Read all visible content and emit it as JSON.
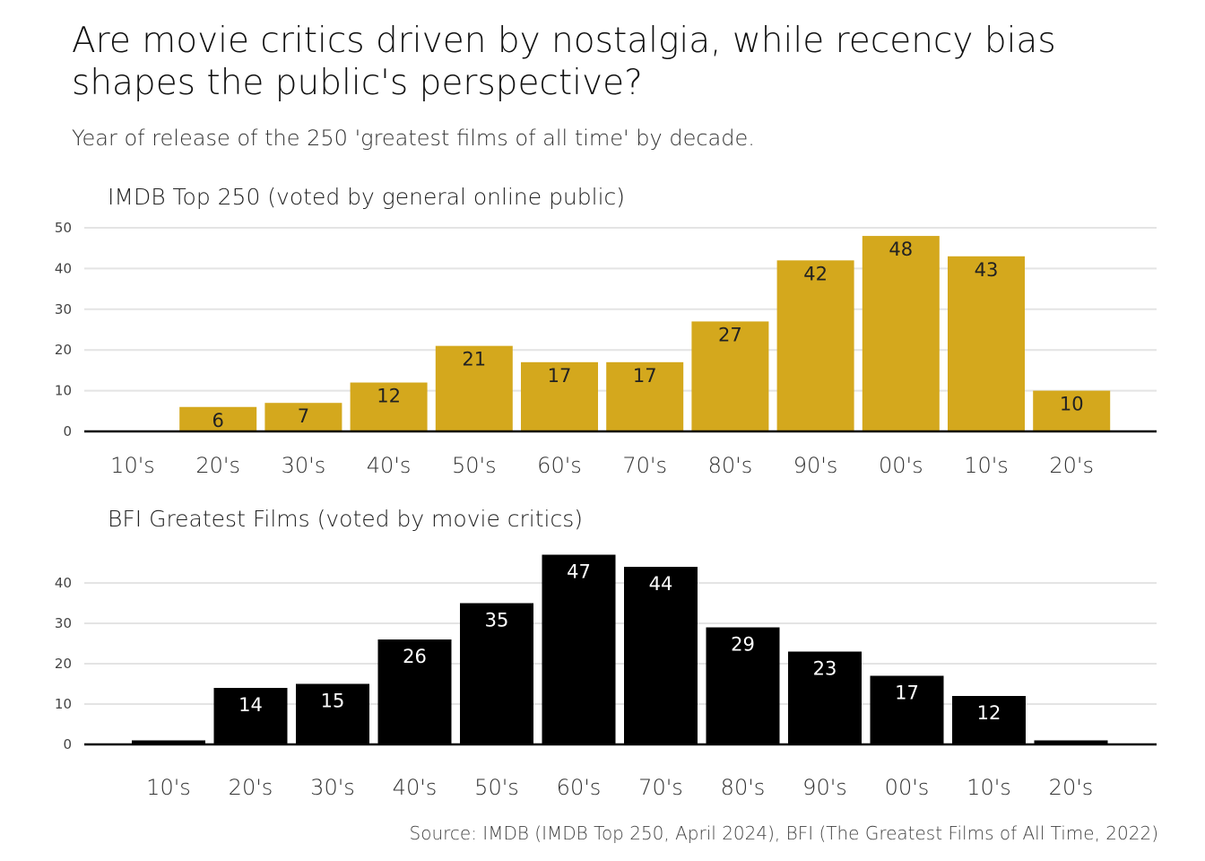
{
  "title": "Are movie critics driven by nostalgia, while recency bias shapes the public's perspective?",
  "subtitle": "Year of release of the 250 'greatest films of all time' by decade.",
  "source": "Source: IMDB (IMDB Top 250, April 2024), BFI (The Greatest Films of All Time, 2022)",
  "chart_data": [
    {
      "type": "bar",
      "title": "IMDB Top 250 (voted by general online public)",
      "categories": [
        "10's",
        "20's",
        "30's",
        "40's",
        "50's",
        "60's",
        "70's",
        "80's",
        "90's",
        "00's",
        "10's",
        "20's"
      ],
      "values": [
        0,
        6,
        7,
        12,
        21,
        17,
        17,
        27,
        42,
        48,
        43,
        10
      ],
      "data_labels": [
        "",
        "6",
        "7",
        "12",
        "21",
        "17",
        "17",
        "27",
        "42",
        "48",
        "43",
        "10"
      ],
      "yticks": [
        0,
        10,
        20,
        30,
        40,
        50
      ],
      "ylim": [
        0,
        50
      ],
      "bar_color": "#D4A81D",
      "label_color": "#222222",
      "grid": true
    },
    {
      "type": "bar",
      "title": "BFI Greatest Films (voted by movie critics)",
      "categories": [
        "10's",
        "20's",
        "30's",
        "40's",
        "50's",
        "60's",
        "70's",
        "80's",
        "90's",
        "00's",
        "10's",
        "20's"
      ],
      "values": [
        1,
        14,
        15,
        26,
        35,
        47,
        44,
        29,
        23,
        17,
        12,
        1
      ],
      "data_labels": [
        "",
        "14",
        "15",
        "26",
        "35",
        "47",
        "44",
        "29",
        "23",
        "17",
        "12",
        ""
      ],
      "yticks": [
        0,
        10,
        20,
        30,
        40
      ],
      "ylim": [
        0,
        47
      ],
      "bar_color": "#000000",
      "label_color": "#ffffff",
      "grid": true
    }
  ]
}
